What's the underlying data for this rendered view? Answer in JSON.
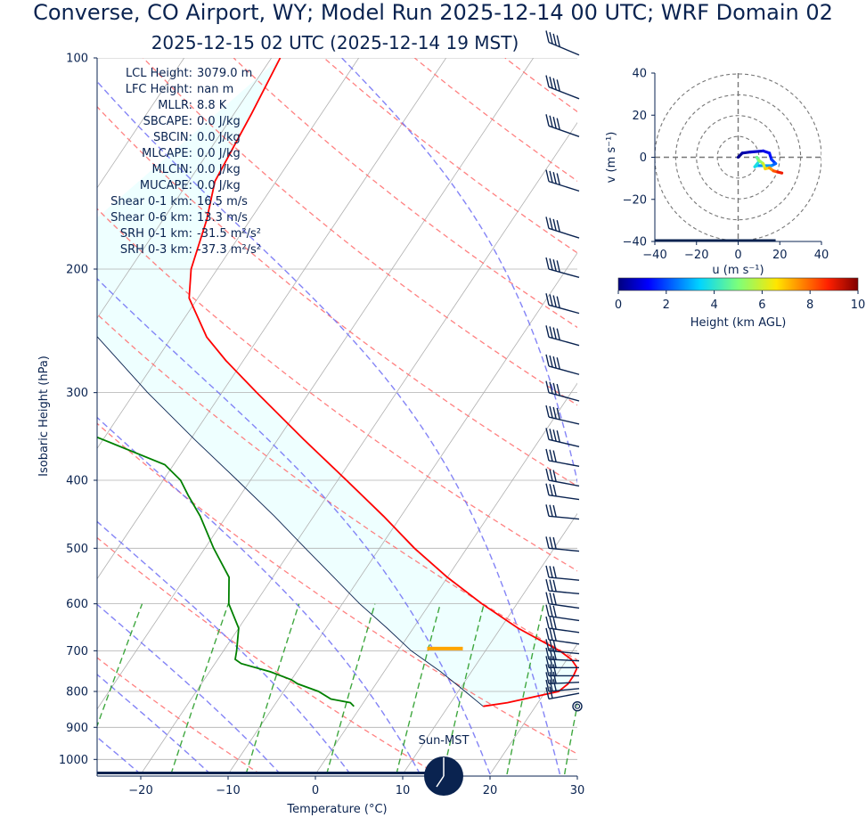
{
  "header": {
    "title": "Converse, CO Airport, WY; Model Run 2025-12-14 00 UTC; WRF Domain 02",
    "subtitle": "2025-12-15 02 UTC  (2025-12-14 19 MST)"
  },
  "stats": [
    {
      "label": "LCL Height:",
      "value": "3079.0 m"
    },
    {
      "label": "LFC Height:",
      "value": "nan m"
    },
    {
      "label": "MLLR:",
      "value": "8.8 K"
    },
    {
      "label": "SBCAPE:",
      "value": "0.0 J/kg"
    },
    {
      "label": "SBCIN:",
      "value": "0.0 J/kg"
    },
    {
      "label": "MLCAPE:",
      "value": "0.0 J/kg"
    },
    {
      "label": "MLCIN:",
      "value": "0.0 J/kg"
    },
    {
      "label": "MUCAPE:",
      "value": "0.0 J/kg"
    },
    {
      "label": "Shear 0-1 km:",
      "value": "16.5 m/s"
    },
    {
      "label": "Shear 0-6 km:",
      "value": "13.3 m/s"
    },
    {
      "label": "SRH 0-1 km:",
      "value": "-31.5 m²/s²"
    },
    {
      "label": "SRH 0-3 km:",
      "value": "-37.3 m²/s²"
    }
  ],
  "sun_label": "Sun-MST",
  "colors": {
    "temperature": "#ff0000",
    "dewpoint": "#008000",
    "parcel": "#0a2350",
    "lcl_marker": "#ffa500",
    "cape_shade": "#e0ffff",
    "text": "#0a2350"
  },
  "chart_data": [
    {
      "type": "line",
      "subtype": "skew-t",
      "xlabel": "Temperature (°C)",
      "ylabel": "Isobaric Height (hPa)",
      "xlim": [
        -25,
        30
      ],
      "ylim": [
        1050,
        100
      ],
      "yscale": "log",
      "x_ticks": [
        -20,
        -10,
        0,
        10,
        20,
        30
      ],
      "y_ticks": [
        1000,
        900,
        800,
        700,
        600,
        500,
        400,
        300,
        200,
        100
      ],
      "grid": true,
      "series": [
        {
          "key": "temperature",
          "points": [
            [
              840,
              14.0
            ],
            [
              830,
              16.5
            ],
            [
              800,
              21.5
            ],
            [
              780,
              22.0
            ],
            [
              760,
              22.0
            ],
            [
              740,
              21.8
            ],
            [
              720,
              20.5
            ],
            [
              700,
              18.5
            ],
            [
              650,
              12.0
            ],
            [
              600,
              6.0
            ],
            [
              550,
              0.0
            ],
            [
              500,
              -6.0
            ],
            [
              450,
              -12.0
            ],
            [
              400,
              -19.0
            ],
            [
              350,
              -27.0
            ],
            [
              300,
              -36.0
            ],
            [
              270,
              -42.0
            ],
            [
              250,
              -46.0
            ],
            [
              220,
              -51.0
            ],
            [
              200,
              -53.0
            ],
            [
              170,
              -55.0
            ],
            [
              150,
              -57.0
            ],
            [
              120,
              -58.0
            ],
            [
              100,
              -59.0
            ]
          ]
        },
        {
          "key": "dewpoint",
          "points": [
            [
              840,
              -0.8
            ],
            [
              830,
              -1.5
            ],
            [
              820,
              -4.0
            ],
            [
              800,
              -6.0
            ],
            [
              780,
              -9.0
            ],
            [
              770,
              -10.0
            ],
            [
              750,
              -13.0
            ],
            [
              730,
              -17.0
            ],
            [
              720,
              -18.0
            ],
            [
              700,
              -18.5
            ],
            [
              650,
              -20.0
            ],
            [
              600,
              -23.0
            ],
            [
              550,
              -25.0
            ],
            [
              500,
              -29.0
            ],
            [
              450,
              -33.0
            ],
            [
              420,
              -36.0
            ],
            [
              400,
              -38.0
            ],
            [
              380,
              -41.0
            ],
            [
              350,
              -50.0
            ],
            [
              320,
              -60.0
            ],
            [
              300,
              -62.0
            ],
            [
              250,
              -71.0
            ],
            [
              200,
              -80.0
            ],
            [
              170,
              -86.0
            ],
            [
              150,
              -88.0
            ],
            [
              120,
              -90.0
            ],
            [
              100,
              -92.0
            ]
          ]
        },
        {
          "key": "parcel",
          "points": [
            [
              840,
              14.0
            ],
            [
              800,
              10.8
            ],
            [
              750,
              6.5
            ],
            [
              700,
              1.5
            ],
            [
              650,
              -3.0
            ],
            [
              600,
              -8.0
            ],
            [
              550,
              -13.0
            ],
            [
              500,
              -18.5
            ],
            [
              450,
              -24.5
            ],
            [
              400,
              -31.5
            ],
            [
              350,
              -39.5
            ],
            [
              300,
              -48.5
            ],
            [
              250,
              -58.5
            ],
            [
              200,
              -70.5
            ]
          ]
        }
      ],
      "lcl": {
        "pressure": 695,
        "temperature": 5.2
      },
      "wind_barbs": [
        {
          "p": 840,
          "speed_kt": 0
        },
        {
          "p": 820,
          "speed_kt": 20,
          "dir": 250
        },
        {
          "p": 800,
          "speed_kt": 25,
          "dir": 260
        },
        {
          "p": 780,
          "speed_kt": 30,
          "dir": 265
        },
        {
          "p": 760,
          "speed_kt": 30,
          "dir": 270
        },
        {
          "p": 740,
          "speed_kt": 30,
          "dir": 270
        },
        {
          "p": 720,
          "speed_kt": 30,
          "dir": 275
        },
        {
          "p": 700,
          "speed_kt": 30,
          "dir": 280
        },
        {
          "p": 675,
          "speed_kt": 30,
          "dir": 285
        },
        {
          "p": 650,
          "speed_kt": 30,
          "dir": 285
        },
        {
          "p": 625,
          "speed_kt": 30,
          "dir": 285
        },
        {
          "p": 600,
          "speed_kt": 30,
          "dir": 285
        },
        {
          "p": 575,
          "speed_kt": 30,
          "dir": 280
        },
        {
          "p": 550,
          "speed_kt": 30,
          "dir": 280
        },
        {
          "p": 500,
          "speed_kt": 30,
          "dir": 280
        },
        {
          "p": 450,
          "speed_kt": 30,
          "dir": 280
        },
        {
          "p": 420,
          "speed_kt": 30,
          "dir": 285
        },
        {
          "p": 400,
          "speed_kt": 30,
          "dir": 290
        },
        {
          "p": 375,
          "speed_kt": 30,
          "dir": 290
        },
        {
          "p": 350,
          "speed_kt": 35,
          "dir": 295
        },
        {
          "p": 325,
          "speed_kt": 35,
          "dir": 295
        },
        {
          "p": 300,
          "speed_kt": 35,
          "dir": 300
        },
        {
          "p": 275,
          "speed_kt": 35,
          "dir": 300
        },
        {
          "p": 250,
          "speed_kt": 40,
          "dir": 300
        },
        {
          "p": 225,
          "speed_kt": 40,
          "dir": 300
        },
        {
          "p": 200,
          "speed_kt": 40,
          "dir": 300
        },
        {
          "p": 175,
          "speed_kt": 40,
          "dir": 305
        },
        {
          "p": 150,
          "speed_kt": 40,
          "dir": 305
        },
        {
          "p": 125,
          "speed_kt": 40,
          "dir": 310
        },
        {
          "p": 110,
          "speed_kt": 40,
          "dir": 315
        },
        {
          "p": 95,
          "speed_kt": 40,
          "dir": 320
        }
      ]
    },
    {
      "type": "line",
      "subtype": "hodograph",
      "xlabel": "u (m s⁻¹)",
      "ylabel": "v (m s⁻¹)",
      "xlim": [
        -40,
        40
      ],
      "ylim": [
        -40,
        40
      ],
      "ticks": [
        -40,
        -20,
        0,
        20,
        40
      ],
      "rings": [
        10,
        20,
        30,
        40
      ],
      "points": [
        {
          "u": 0.0,
          "v": 0.0,
          "z": 0.0
        },
        {
          "u": 2.0,
          "v": 2.0,
          "z": 0.3
        },
        {
          "u": 6.0,
          "v": 2.5,
          "z": 0.6
        },
        {
          "u": 12.0,
          "v": 3.0,
          "z": 0.9
        },
        {
          "u": 15.0,
          "v": 2.0,
          "z": 1.2
        },
        {
          "u": 16.0,
          "v": -1.0,
          "z": 1.6
        },
        {
          "u": 18.0,
          "v": -3.0,
          "z": 2.0
        },
        {
          "u": 16.0,
          "v": -4.0,
          "z": 2.5
        },
        {
          "u": 9.0,
          "v": -4.0,
          "z": 3.0
        },
        {
          "u": 8.0,
          "v": -4.5,
          "z": 3.5
        },
        {
          "u": 10.0,
          "v": -2.0,
          "z": 4.0
        },
        {
          "u": 9.0,
          "v": 0.0,
          "z": 4.5
        },
        {
          "u": 10.0,
          "v": -1.5,
          "z": 5.0
        },
        {
          "u": 12.0,
          "v": -3.0,
          "z": 5.6
        },
        {
          "u": 13.0,
          "v": -5.5,
          "z": 6.5
        },
        {
          "u": 15.0,
          "v": -5.0,
          "z": 7.2
        },
        {
          "u": 17.0,
          "v": -6.5,
          "z": 7.8
        },
        {
          "u": 19.0,
          "v": -7.0,
          "z": 8.6
        },
        {
          "u": 21.0,
          "v": -7.5,
          "z": 9.2
        }
      ],
      "colorbar": {
        "label": "Height (km AGL)",
        "range": [
          0,
          10
        ],
        "ticks": [
          0,
          2,
          4,
          6,
          8,
          10
        ]
      }
    }
  ]
}
